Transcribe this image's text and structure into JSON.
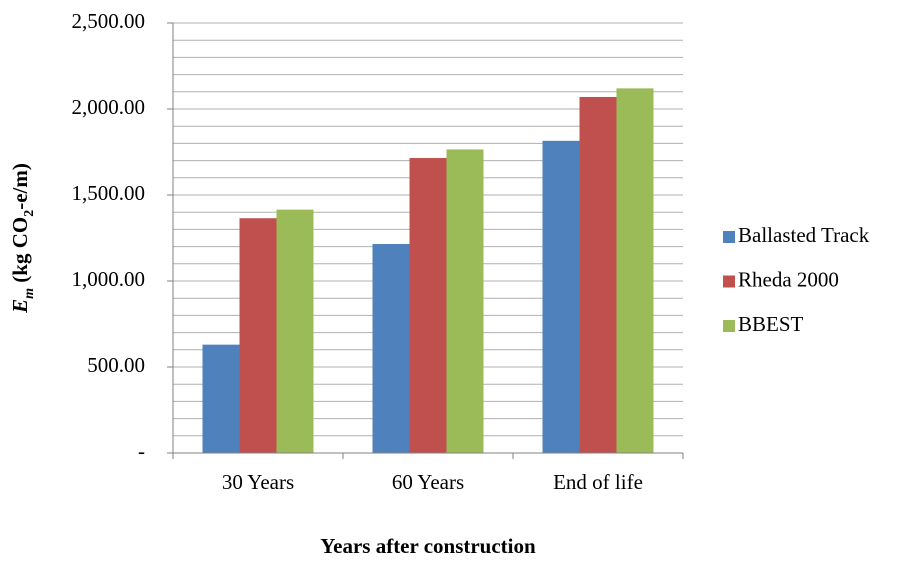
{
  "chart_data": {
    "type": "bar",
    "x_label": "Years after construction",
    "y_label_parts": [
      "E",
      "m",
      " (kg CO",
      "2",
      "-e/m)"
    ],
    "categories": [
      "30 Years",
      "60 Years",
      "End of life"
    ],
    "series": [
      {
        "name": "Ballasted Track",
        "color": "#4f81bd",
        "values": [
          630,
          1215,
          1815
        ]
      },
      {
        "name": "Rheda 2000",
        "color": "#c0504d",
        "values": [
          1365,
          1715,
          2070
        ]
      },
      {
        "name": "BBEST",
        "color": "#9bbb59",
        "values": [
          1415,
          1765,
          2120
        ]
      }
    ],
    "ylim": [
      0,
      2500
    ],
    "yticks": [
      {
        "value": 0,
        "label": "-"
      },
      {
        "value": 500,
        "label": "500.00"
      },
      {
        "value": 1000,
        "label": "1,000.00"
      },
      {
        "value": 1500,
        "label": "1,500.00"
      },
      {
        "value": 2000,
        "label": "2,000.00"
      },
      {
        "value": 2500,
        "label": "2,500.00"
      }
    ],
    "minor_yticks": [
      100,
      200,
      300,
      400,
      600,
      700,
      800,
      900,
      1100,
      1200,
      1300,
      1400,
      1600,
      1700,
      1800,
      1900,
      2100,
      2200,
      2300,
      2400
    ],
    "grid": true,
    "legend": "right"
  }
}
